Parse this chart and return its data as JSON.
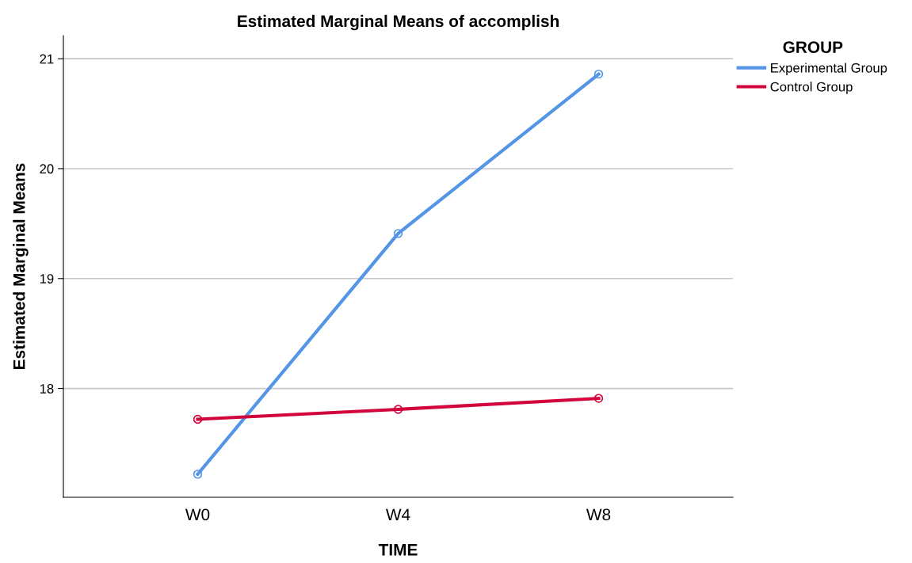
{
  "chart_data": {
    "type": "line",
    "title": "Estimated Marginal Means of accomplish",
    "xlabel": "TIME",
    "ylabel": "Estimated Marginal Means",
    "legend_title": "GROUP",
    "categories": [
      "W0",
      "W4",
      "W8"
    ],
    "series": [
      {
        "name": "Experimental Group",
        "color": "#5595e6",
        "values": [
          17.22,
          19.41,
          20.86
        ]
      },
      {
        "name": "Control Group",
        "color": "#d2043c",
        "values": [
          17.72,
          17.81,
          17.91
        ]
      }
    ],
    "ylim": [
      17.01,
      21.21
    ],
    "yticks": [
      18,
      19,
      20,
      21
    ],
    "grid": "y",
    "legend": "top right",
    "marker": "circle",
    "line_style": "solid"
  }
}
